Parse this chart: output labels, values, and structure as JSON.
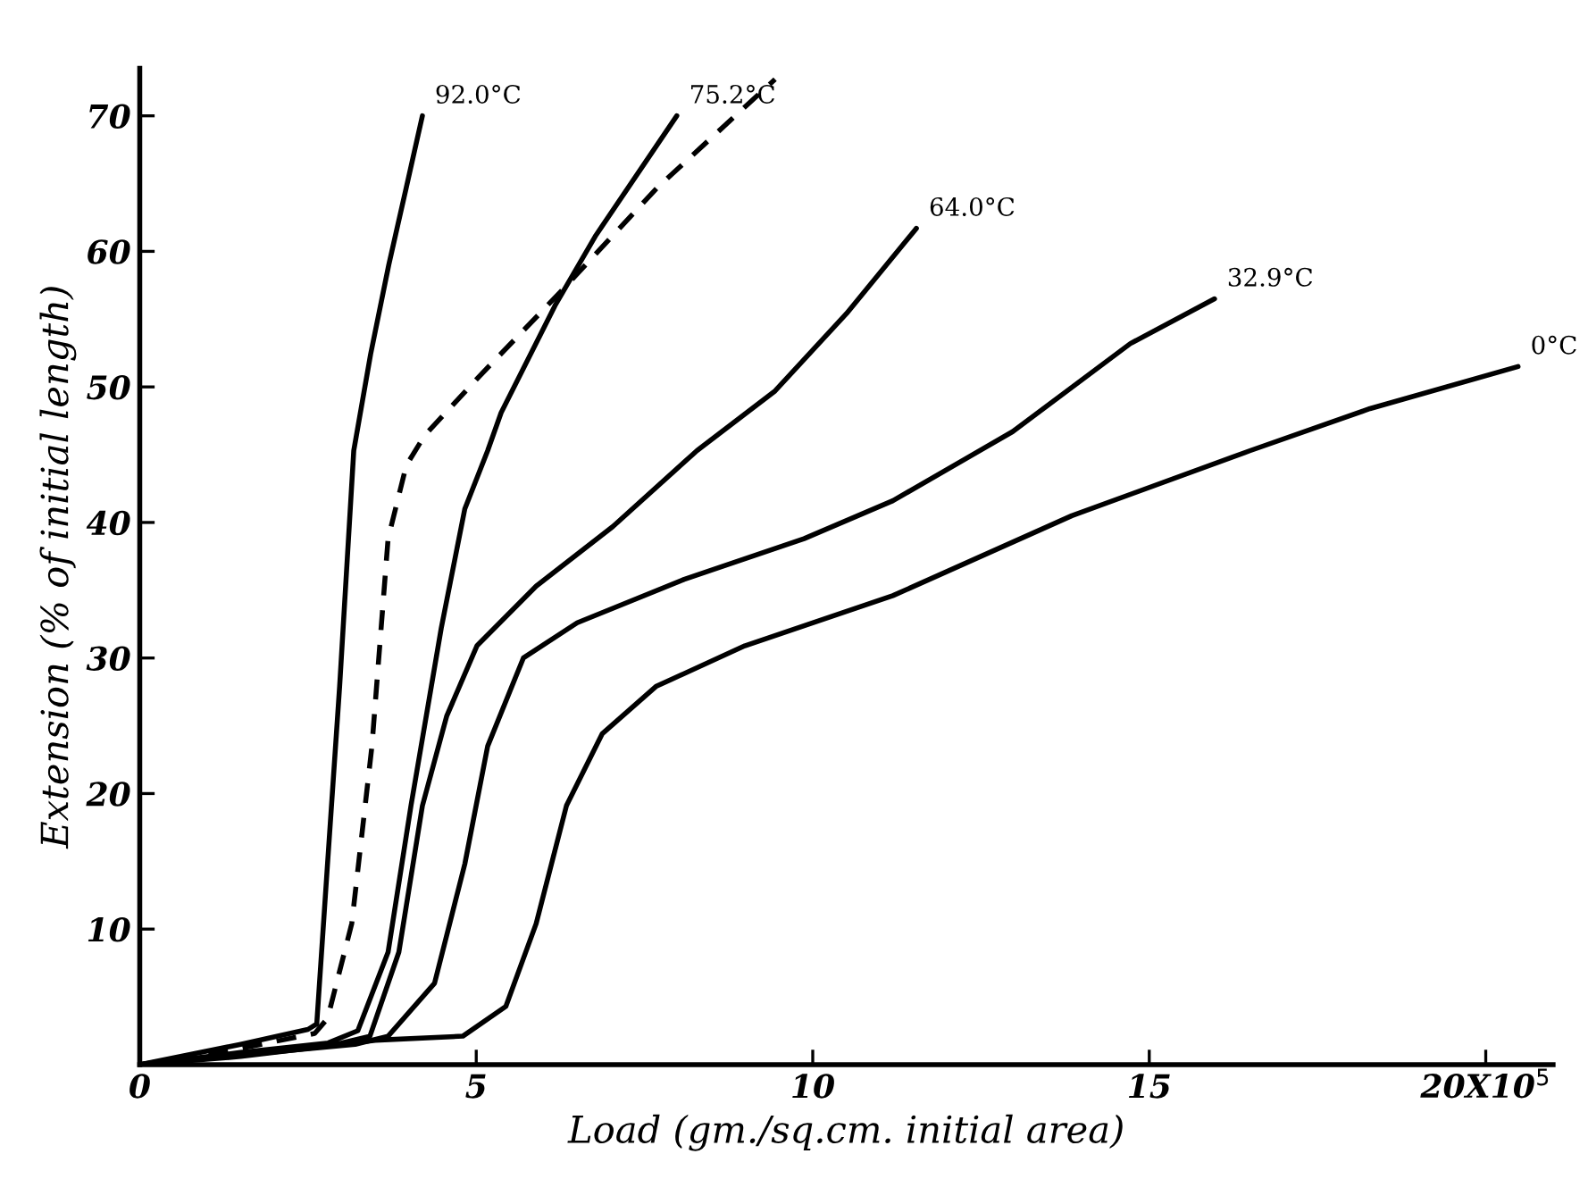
{
  "chart_data": {
    "type": "line",
    "xlabel": "Load (gm./sq.cm. initial area)",
    "ylabel": "Extension (% of initial length)",
    "xlim": [
      0,
      21
    ],
    "ylim": [
      0,
      73.5
    ],
    "xticks": [
      0,
      5,
      10,
      15,
      {
        "value": 20,
        "label": "20X10$^{5}$"
      }
    ],
    "yticks": [
      10,
      20,
      30,
      40,
      50,
      60,
      70
    ],
    "grid": false,
    "legend": false,
    "marker": "none",
    "series": [
      {
        "name": "92.0°C",
        "color": "#000000",
        "line_style": "solid",
        "x": [
          0,
          1.5,
          2.5,
          2.63,
          2.79,
          2.97,
          3.18,
          3.43,
          3.7,
          3.96,
          4.2
        ],
        "values": [
          0,
          1.5,
          2.6,
          3.0,
          14.8,
          27.9,
          45.3,
          52.4,
          59,
          64.7,
          70
        ]
      },
      {
        "color": "#000000",
        "line_style": "dashed",
        "x": [
          0,
          1.5,
          2.6,
          2.79,
          3.15,
          3.45,
          3.69,
          3.96,
          4.23,
          5.03,
          6.25,
          7.69,
          9.44
        ],
        "values": [
          0,
          1.2,
          2.3,
          3.4,
          10.4,
          23.5,
          38.8,
          44.2,
          46.4,
          50.7,
          57,
          64.7,
          72.7
        ]
      },
      {
        "name": "75.2°C",
        "color": "#000000",
        "line_style": "solid",
        "x": [
          0,
          1.5,
          2.8,
          3.24,
          3.69,
          4.03,
          4.48,
          4.83,
          5.17,
          5.37,
          6.17,
          6.78,
          7.98
        ],
        "values": [
          0,
          0.9,
          1.6,
          2.5,
          8.3,
          19.1,
          32.2,
          41,
          45.3,
          48.1,
          56,
          61.2,
          70
        ]
      },
      {
        "name": "64.0°C",
        "color": "#000000",
        "line_style": "solid",
        "x": [
          0,
          1.5,
          3.0,
          3.42,
          3.85,
          4.2,
          4.56,
          5.01,
          5.89,
          7.03,
          8.28,
          9.44,
          10.5,
          11.54
        ],
        "values": [
          0,
          0.8,
          1.6,
          2.1,
          8.3,
          19.1,
          25.7,
          30.9,
          35.3,
          39.7,
          45.3,
          49.7,
          55.4,
          61.7
        ]
      },
      {
        "name": "32.9°C",
        "color": "#000000",
        "line_style": "solid",
        "x": [
          0,
          1.5,
          3.2,
          3.69,
          4.38,
          4.83,
          5.17,
          5.7,
          6.5,
          8.09,
          9.87,
          11.19,
          12.97,
          14.72,
          15.97
        ],
        "values": [
          0,
          0.7,
          1.5,
          2.1,
          6,
          14.8,
          23.5,
          30,
          32.6,
          35.8,
          38.8,
          41.6,
          46.7,
          53.2,
          56.5
        ]
      },
      {
        "name": "0°C",
        "color": "#000000",
        "line_style": "solid",
        "x": [
          0,
          1.5,
          3.5,
          4.8,
          5.44,
          5.89,
          6.34,
          6.87,
          7.67,
          8.99,
          11.19,
          13.85,
          16.5,
          18.28,
          20.48
        ],
        "values": [
          0,
          0.6,
          1.8,
          2.1,
          4.3,
          10.4,
          19.1,
          24.4,
          27.9,
          30.9,
          34.6,
          40.5,
          45.3,
          48.4,
          51.5
        ]
      }
    ]
  }
}
